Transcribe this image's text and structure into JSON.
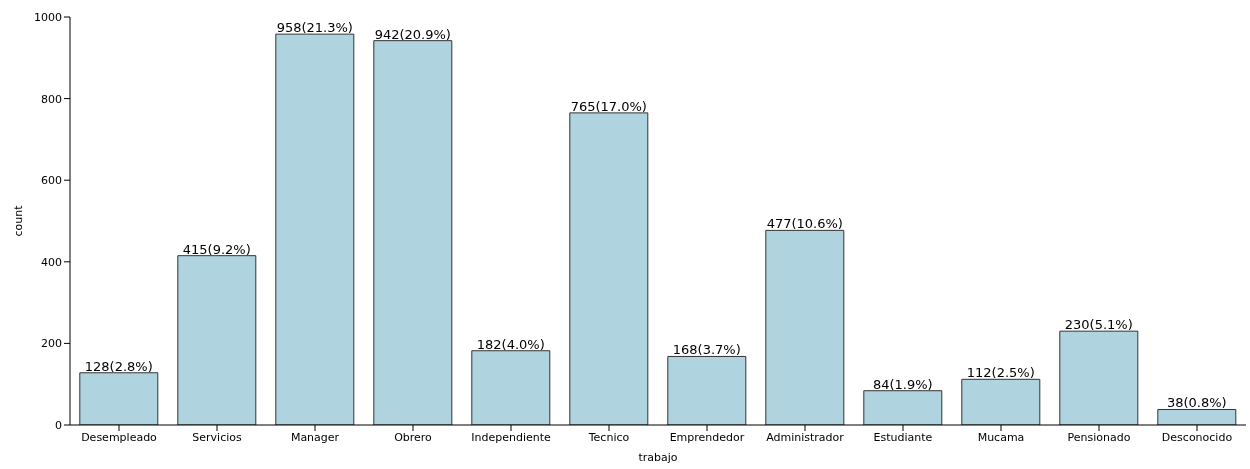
{
  "chart_data": {
    "type": "bar",
    "xlabel": "trabajo",
    "ylabel": "count",
    "categories": [
      "Desempleado",
      "Servicios",
      "Manager",
      "Obrero",
      "Independiente",
      "Tecnico",
      "Emprendedor",
      "Administrador",
      "Estudiante",
      "Mucama",
      "Pensionado",
      "Desconocido"
    ],
    "values": [
      128,
      415,
      958,
      942,
      182,
      765,
      168,
      477,
      84,
      112,
      230,
      38
    ],
    "value_labels": [
      "128(2.8%)",
      "415(9.2%)",
      "958(21.3%)",
      "942(20.9%)",
      "182(4.0%)",
      "765(17.0%)",
      "168(3.7%)",
      "477(10.6%)",
      "84(1.9%)",
      "112(2.5%)",
      "230(5.1%)",
      "38(0.8%)"
    ],
    "color": "#b0d4df",
    "ylim": [
      0,
      1000
    ],
    "yticks": [
      0,
      200,
      400,
      600,
      800,
      1000
    ],
    "grid": false
  }
}
